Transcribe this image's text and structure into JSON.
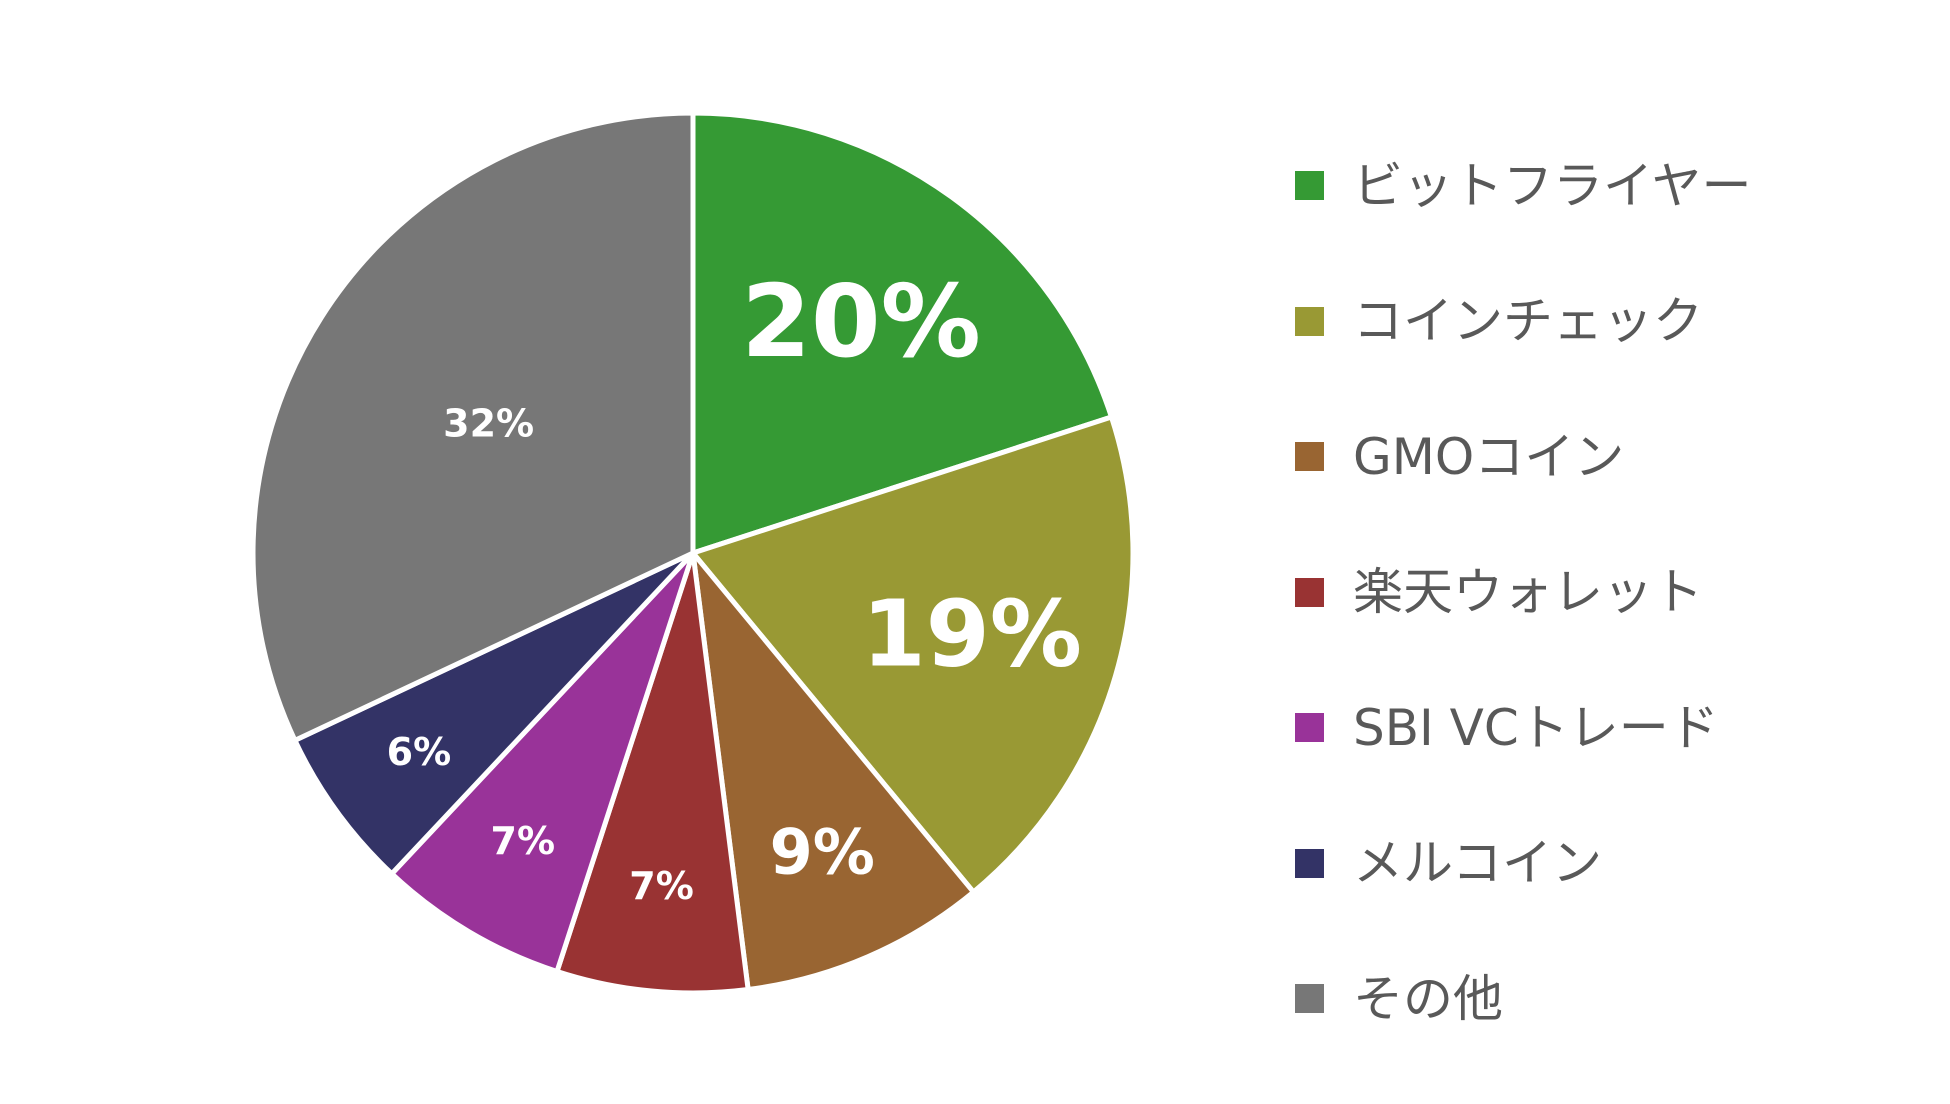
{
  "chart_data": {
    "type": "pie",
    "title": "",
    "start_angle_deg": 0,
    "direction": "clockwise",
    "slice_border_color": "#ffffff",
    "label_color": "#ffffff",
    "legend_position": "right",
    "slices": [
      {
        "name": "ビットフライヤー",
        "value": 20,
        "label": "20%",
        "color": "#359a34"
      },
      {
        "name": "コインチェック",
        "value": 19,
        "label": "19%",
        "color": "#999934"
      },
      {
        "name": "GMOコイン",
        "value": 9,
        "label": "9%",
        "color": "#996532"
      },
      {
        "name": "楽天ウォレット",
        "value": 7,
        "label": "7%",
        "color": "#993333"
      },
      {
        "name": "SBI VCトレード",
        "value": 7,
        "label": "7%",
        "color": "#993399"
      },
      {
        "name": "メルコイン",
        "value": 6,
        "label": "6%",
        "color": "#333366"
      },
      {
        "name": "その他",
        "value": 32,
        "label": "32%",
        "color": "#777777"
      }
    ]
  }
}
